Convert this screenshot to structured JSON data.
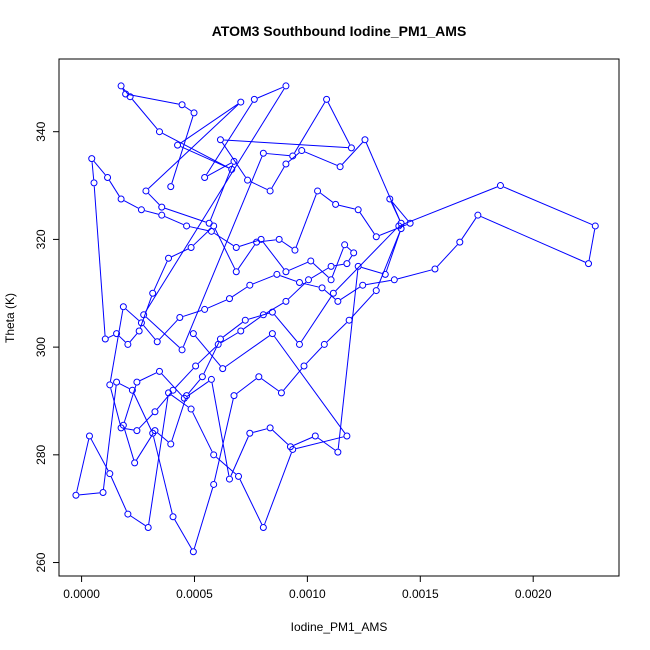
{
  "chart_data": {
    "type": "scatter",
    "connected": true,
    "title": "ATOM3 Southbound Iodine_PM1_AMS",
    "xlabel": "Iodine_PM1_AMS",
    "ylabel": "Theta (K)",
    "xlim": [
      -0.0001,
      0.00238
    ],
    "ylim": [
      257.5,
      353.5
    ],
    "x_ticks": [
      0.0,
      0.0005,
      0.001,
      0.0015,
      0.002
    ],
    "x_tick_labels": [
      "0.0000",
      "0.0005",
      "0.0010",
      "0.0015",
      "0.0020"
    ],
    "y_ticks": [
      260,
      280,
      300,
      320,
      340
    ],
    "y_tick_labels": [
      "260",
      "280",
      "300",
      "320",
      "340"
    ],
    "series_color": "#0000ff",
    "grid": false,
    "legend": "none",
    "series": [
      {
        "x": [
          0.000395,
          0.000498,
          0.000445,
          0.000195,
          0.000175,
          0.000215,
          0.000345,
          0.000665,
          0.000425,
          0.000705,
          0.000285,
          0.000355,
          0.000565,
          0.000675,
          0.000545,
          0.000765,
          0.000905,
          0.000275,
          0.000445,
          0.000805,
          0.000935,
          0.001085,
          0.001195,
          0.000615,
          0.000735,
          0.000835,
          0.000905,
          0.000975,
          0.001145,
          0.001255,
          0.001415,
          0.001365,
          0.001455,
          0.001305,
          0.001225,
          0.001125,
          0.001045,
          0.000945,
          0.000875,
          0.000775,
          0.000685,
          0.000585,
          0.000485,
          0.000385,
          0.000315,
          0.000255,
          0.000205,
          0.000155,
          0.000105,
          5.5e-05,
          4.5e-05,
          0.000115,
          0.000175,
          0.000265,
          0.000355,
          0.000465,
          0.000575,
          0.000685,
          0.000795,
          0.000905,
          0.001015,
          0.001105,
          0.001165,
          0.001205,
          0.001175,
          0.001105,
          0.001005,
          0.000905,
          0.000805,
          0.000705,
          0.000605,
          0.000505,
          0.000405,
          0.000325,
          0.000245,
          0.000175,
          0.000125,
          0.000185,
          0.000265,
          0.000335,
          0.000435,
          0.000545,
          0.000655,
          0.000745,
          0.000865,
          0.000965,
          0.001065,
          0.001135,
          0.001245,
          0.001385,
          0.001565,
          0.001675,
          0.001755,
          0.002245,
          0.002275,
          0.001855,
          0.001405,
          0.001115,
          0.000965,
          0.000845,
          0.000725,
          0.000615,
          0.000535,
          0.000465,
          0.000395,
          0.000325,
          0.000235,
          0.000185,
          0.000245,
          0.000345,
          0.000455,
          0.000575,
          0.000655,
          0.000745,
          0.000835,
          0.000925,
          0.001035,
          0.001135,
          0.001225,
          0.001345,
          0.001415,
          0.001305,
          0.001185,
          0.001075,
          0.000985,
          0.000885,
          0.000785,
          0.000675,
          0.000585,
          0.000495,
          0.000405,
          0.000315,
          0.000225,
          0.000155,
          9.5e-05,
          -2.5e-05,
          3.5e-05,
          0.000125,
          0.000205,
          0.000295,
          0.000385,
          0.000485,
          0.000585,
          0.000695,
          0.000805,
          0.000935,
          0.001175,
          0.000845,
          0.000625,
          0.000495
        ],
        "y": [
          329.8,
          343.5,
          345.0,
          347.0,
          348.5,
          346.5,
          340.0,
          333.0,
          337.5,
          345.5,
          329.0,
          326.0,
          323.0,
          334.5,
          331.5,
          346.0,
          348.5,
          306.0,
          299.5,
          336.0,
          335.5,
          346.0,
          337.0,
          338.5,
          331.0,
          329.0,
          334.0,
          336.5,
          333.5,
          338.5,
          323.0,
          327.5,
          323.0,
          320.5,
          325.5,
          326.5,
          329.0,
          318.0,
          320.0,
          319.5,
          314.0,
          322.5,
          318.5,
          316.5,
          310.0,
          303.0,
          300.5,
          302.5,
          301.5,
          330.5,
          335.0,
          331.5,
          327.5,
          325.5,
          324.5,
          322.5,
          321.5,
          318.5,
          320.0,
          314.0,
          316.0,
          312.5,
          319.0,
          317.5,
          315.5,
          315.0,
          312.5,
          308.5,
          306.0,
          303.0,
          300.5,
          296.5,
          292.0,
          288.0,
          284.5,
          285.0,
          293.0,
          307.5,
          304.5,
          301.0,
          305.5,
          307.0,
          309.0,
          311.5,
          313.5,
          312.0,
          311.0,
          308.5,
          311.5,
          312.5,
          314.5,
          319.5,
          324.5,
          315.5,
          322.5,
          330.0,
          322.5,
          310.0,
          300.5,
          306.5,
          305.0,
          301.5,
          294.5,
          291.0,
          282.0,
          284.5,
          278.5,
          285.5,
          293.5,
          295.5,
          290.5,
          294.0,
          275.5,
          284.0,
          285.0,
          281.5,
          283.5,
          280.5,
          315.0,
          313.5,
          322.0,
          310.5,
          305.0,
          300.5,
          296.5,
          291.5,
          294.5,
          291.0,
          274.5,
          262.0,
          268.5,
          284.0,
          292.0,
          293.5,
          273.0,
          272.5,
          283.5,
          276.5,
          269.0,
          266.5,
          291.5,
          288.5,
          280.0,
          276.0,
          266.5,
          281.0,
          283.5,
          302.5,
          296.0,
          302.5
        ]
      }
    ]
  }
}
